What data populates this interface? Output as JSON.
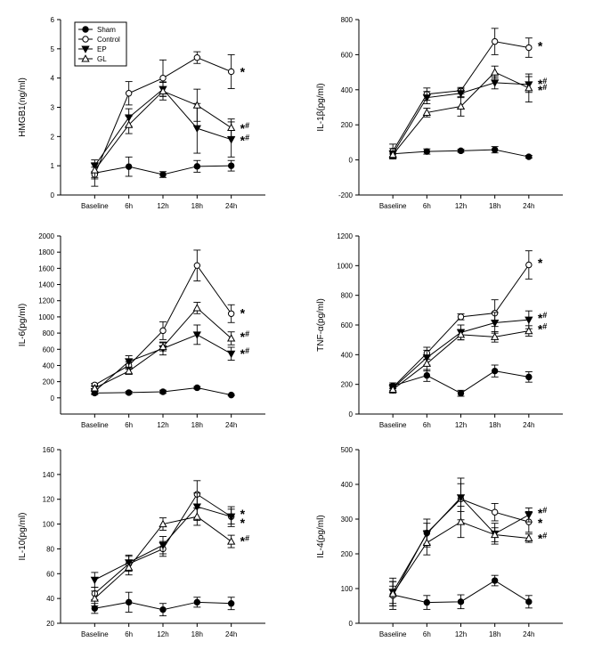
{
  "chart_data": [
    {
      "type": "line",
      "title": "",
      "xlabel": "",
      "ylabel": "HMGB1(ng/ml)",
      "categories": [
        "Baseline",
        "6h",
        "12h",
        "18h",
        "24h"
      ],
      "ylim": [
        0,
        6
      ],
      "yticks": [
        0,
        1,
        2,
        3,
        4,
        5,
        6
      ],
      "legend": {
        "position": "top-left",
        "entries": [
          "Sham",
          "Control",
          "EP",
          "GL"
        ]
      },
      "series": [
        {
          "name": "Sham",
          "values": [
            0.75,
            0.97,
            0.7,
            0.98,
            1.0
          ],
          "errors": [
            0.2,
            0.33,
            0.1,
            0.2,
            0.18
          ]
        },
        {
          "name": "Control",
          "values": [
            0.7,
            3.48,
            4.0,
            4.7,
            4.22
          ],
          "errors": [
            0.4,
            0.4,
            0.62,
            0.2,
            0.58
          ]
        },
        {
          "name": "EP",
          "values": [
            1.0,
            2.65,
            3.62,
            2.28,
            1.9
          ],
          "errors": [
            0.2,
            0.3,
            0.25,
            0.85,
            0.6
          ]
        },
        {
          "name": "GL",
          "values": [
            0.85,
            2.4,
            3.55,
            3.07,
            2.3
          ],
          "errors": [
            0.25,
            0.3,
            0.3,
            0.55,
            0.3
          ]
        }
      ],
      "annotations": [
        {
          "text": "*",
          "sup": "",
          "value": 4.25
        },
        {
          "text": "*",
          "sup": "#",
          "value": 2.32
        },
        {
          "text": "*",
          "sup": "#",
          "value": 1.9
        }
      ]
    },
    {
      "type": "line",
      "title": "",
      "xlabel": "",
      "ylabel": "IL-1β(pg/ml)",
      "categories": [
        "Baseline",
        "6h",
        "12h",
        "18h",
        "24h"
      ],
      "ylim": [
        -200,
        800
      ],
      "yticks": [
        -200,
        0,
        200,
        400,
        600,
        800
      ],
      "series": [
        {
          "name": "Sham",
          "values": [
            35,
            48,
            52,
            58,
            18
          ],
          "errors": [
            15,
            15,
            8,
            18,
            8
          ]
        },
        {
          "name": "Control",
          "values": [
            50,
            375,
            395,
            675,
            640
          ],
          "errors": [
            40,
            35,
            18,
            75,
            55
          ]
        },
        {
          "name": "EP",
          "values": [
            35,
            355,
            380,
            440,
            430
          ],
          "errors": [
            30,
            35,
            25,
            35,
            45
          ]
        },
        {
          "name": "GL",
          "values": [
            30,
            270,
            305,
            500,
            410
          ],
          "errors": [
            20,
            25,
            55,
            35,
            80
          ]
        }
      ],
      "annotations": [
        {
          "text": "*",
          "sup": "",
          "value": 655
        },
        {
          "text": "*",
          "sup": "#",
          "value": 440
        },
        {
          "text": "*",
          "sup": "#",
          "value": 405
        }
      ]
    },
    {
      "type": "line",
      "title": "",
      "xlabel": "",
      "ylabel": "IL-6(pg/ml)",
      "categories": [
        "Baseline",
        "6h",
        "12h",
        "18h",
        "24h"
      ],
      "ylim": [
        -200,
        2000
      ],
      "yticks": [
        0,
        200,
        400,
        600,
        800,
        1000,
        1200,
        1400,
        1600,
        1800,
        2000
      ],
      "series": [
        {
          "name": "Sham",
          "values": [
            60,
            65,
            75,
            125,
            35
          ],
          "errors": [
            20,
            15,
            20,
            15,
            8
          ]
        },
        {
          "name": "Control",
          "values": [
            160,
            400,
            830,
            1635,
            1040
          ],
          "errors": [
            20,
            45,
            110,
            190,
            110
          ]
        },
        {
          "name": "EP",
          "values": [
            80,
            450,
            610,
            780,
            545
          ],
          "errors": [
            30,
            70,
            80,
            120,
            80
          ]
        },
        {
          "name": "GL",
          "values": [
            120,
            330,
            630,
            1110,
            735
          ],
          "errors": [
            30,
            40,
            50,
            70,
            80
          ]
        }
      ],
      "annotations": [
        {
          "text": "*",
          "sup": "",
          "value": 1060
        },
        {
          "text": "*",
          "sup": "#",
          "value": 770
        },
        {
          "text": "*",
          "sup": "#",
          "value": 560
        }
      ]
    },
    {
      "type": "line",
      "title": "",
      "xlabel": "",
      "ylabel": "TNF-α(pg/ml)",
      "categories": [
        "Baseline",
        "6h",
        "12h",
        "18h",
        "24h"
      ],
      "ylim": [
        0,
        1200
      ],
      "yticks": [
        0,
        200,
        400,
        600,
        800,
        1000,
        1200
      ],
      "series": [
        {
          "name": "Sham",
          "values": [
            190,
            260,
            140,
            290,
            250
          ],
          "errors": [
            20,
            40,
            20,
            40,
            35
          ]
        },
        {
          "name": "Control",
          "values": [
            180,
            410,
            655,
            680,
            1005
          ],
          "errors": [
            20,
            40,
            20,
            90,
            95
          ]
        },
        {
          "name": "EP",
          "values": [
            175,
            380,
            550,
            615,
            635
          ],
          "errors": [
            25,
            50,
            50,
            70,
            60
          ]
        },
        {
          "name": "GL",
          "values": [
            165,
            340,
            535,
            520,
            560
          ],
          "errors": [
            25,
            50,
            35,
            35,
            35
          ]
        }
      ],
      "annotations": [
        {
          "text": "*",
          "sup": "",
          "value": 1025
        },
        {
          "text": "*",
          "sup": "#",
          "value": 655
        },
        {
          "text": "*",
          "sup": "#",
          "value": 580
        }
      ]
    },
    {
      "type": "line",
      "title": "",
      "xlabel": "",
      "ylabel": "IL-10(pg/ml)",
      "categories": [
        "Baseline",
        "6h",
        "12h",
        "18h",
        "24h"
      ],
      "ylim": [
        20,
        160
      ],
      "yticks": [
        20,
        40,
        60,
        80,
        100,
        120,
        140,
        160
      ],
      "series": [
        {
          "name": "Sham",
          "values": [
            32,
            37,
            31,
            37,
            36
          ],
          "errors": [
            4,
            8,
            5,
            4,
            5
          ]
        },
        {
          "name": "Control",
          "values": [
            44,
            68,
            80,
            124,
            106
          ],
          "errors": [
            5,
            6,
            6,
            11,
            8
          ]
        },
        {
          "name": "EP",
          "values": [
            55,
            69,
            83,
            114,
            106
          ],
          "errors": [
            6,
            6,
            7,
            11,
            6
          ]
        },
        {
          "name": "GL",
          "values": [
            40,
            65,
            100,
            106,
            86
          ],
          "errors": [
            6,
            6,
            5,
            7,
            5
          ]
        }
      ],
      "annotations": [
        {
          "text": "*",
          "sup": "",
          "value": 109
        },
        {
          "text": "*",
          "sup": "",
          "value": 102
        },
        {
          "text": "*",
          "sup": "#",
          "value": 87
        }
      ]
    },
    {
      "type": "line",
      "title": "",
      "xlabel": "",
      "ylabel": "IL-4(pg/ml)",
      "categories": [
        "Baseline",
        "6h",
        "12h",
        "18h",
        "24h"
      ],
      "ylim": [
        0,
        500
      ],
      "yticks": [
        0,
        100,
        200,
        300,
        400,
        500
      ],
      "series": [
        {
          "name": "Sham",
          "values": [
            82,
            60,
            62,
            123,
            62
          ],
          "errors": [
            25,
            20,
            20,
            15,
            18
          ]
        },
        {
          "name": "Control",
          "values": [
            80,
            260,
            358,
            320,
            292
          ],
          "errors": [
            40,
            40,
            60,
            25,
            30
          ]
        },
        {
          "name": "EP",
          "values": [
            90,
            258,
            362,
            258,
            312
          ],
          "errors": [
            40,
            30,
            40,
            30,
            20
          ]
        },
        {
          "name": "GL",
          "values": [
            85,
            232,
            292,
            255,
            245
          ],
          "errors": [
            35,
            35,
            45,
            20,
            12
          ]
        }
      ],
      "annotations": [
        {
          "text": "*",
          "sup": "#",
          "value": 320
        },
        {
          "text": "*",
          "sup": "",
          "value": 292
        },
        {
          "text": "*",
          "sup": "#",
          "value": 248
        }
      ]
    }
  ]
}
